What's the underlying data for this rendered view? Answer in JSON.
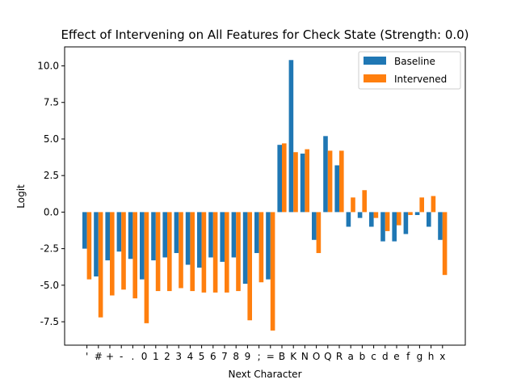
{
  "chart_data": {
    "type": "bar",
    "title": "Effect of Intervening on All Features for Check State (Strength: 0.0)",
    "xlabel": "Next Character",
    "ylabel": "Logit",
    "ylim": [
      -9.1,
      11.3
    ],
    "yticks": [
      -7.5,
      -5.0,
      -2.5,
      0.0,
      2.5,
      5.0,
      7.5,
      10.0
    ],
    "grid": false,
    "legend": "top-right",
    "categories": [
      "'",
      "#",
      "+",
      "-",
      ".",
      "0",
      "1",
      "2",
      "3",
      "4",
      "5",
      "6",
      "7",
      "8",
      "9",
      ";",
      "=",
      "B",
      "K",
      "N",
      "O",
      "Q",
      "R",
      "a",
      "b",
      "c",
      "d",
      "e",
      "f",
      "g",
      "h",
      "x"
    ],
    "series": [
      {
        "name": "Baseline",
        "color": "#1f77b4",
        "values": [
          -2.5,
          -4.4,
          -3.3,
          -2.7,
          -3.2,
          -4.6,
          -3.3,
          -3.1,
          -2.8,
          -3.6,
          -3.8,
          -3.1,
          -3.4,
          -3.1,
          -4.9,
          -2.8,
          -4.6,
          4.6,
          10.4,
          4.0,
          -1.9,
          5.2,
          3.2,
          -1.0,
          -0.4,
          -1.0,
          -2.0,
          -2.0,
          -1.5,
          -0.2,
          -1.0,
          -1.9
        ]
      },
      {
        "name": "Intervened",
        "color": "#ff7f0e",
        "values": [
          -4.6,
          -7.2,
          -5.7,
          -5.3,
          -5.9,
          -7.6,
          -5.4,
          -5.4,
          -5.2,
          -5.4,
          -5.5,
          -5.5,
          -5.5,
          -5.4,
          -7.4,
          -4.8,
          -8.1,
          4.7,
          4.1,
          4.3,
          -2.8,
          4.2,
          4.2,
          1.0,
          1.5,
          -0.4,
          -1.3,
          -0.9,
          -0.2,
          1.0,
          1.1,
          -4.3
        ]
      }
    ]
  }
}
